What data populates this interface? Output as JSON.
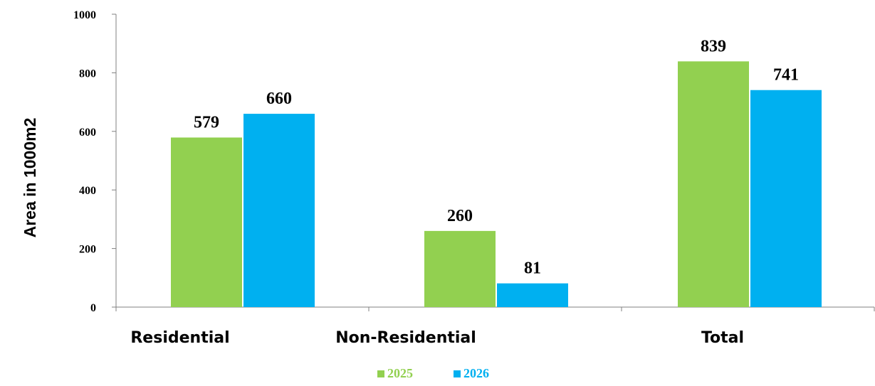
{
  "chart_data": {
    "type": "bar",
    "title": "",
    "xlabel": "",
    "ylabel": "Area in 1000m2",
    "ylim": [
      0,
      1000
    ],
    "yticks": [
      0,
      200,
      400,
      600,
      800,
      1000
    ],
    "categories": [
      "Residential",
      "Non-Residential",
      "Total"
    ],
    "series": [
      {
        "name": "2025",
        "color": "#92d050",
        "values": [
          579,
          260,
          839
        ]
      },
      {
        "name": "2026",
        "color": "#00b0f0",
        "values": [
          660,
          81,
          741
        ]
      }
    ],
    "grid": false,
    "legend": "bottom-center",
    "data_labels": true
  }
}
